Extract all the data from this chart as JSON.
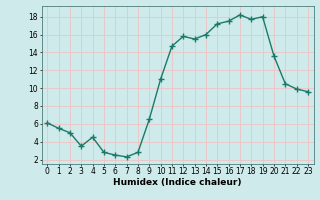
{
  "x": [
    0,
    1,
    2,
    3,
    4,
    5,
    6,
    7,
    8,
    9,
    10,
    11,
    12,
    13,
    14,
    15,
    16,
    17,
    18,
    19,
    20,
    21,
    22,
    23
  ],
  "y": [
    6.1,
    5.5,
    5.0,
    3.5,
    4.5,
    2.8,
    2.5,
    2.3,
    2.8,
    6.5,
    11.0,
    14.7,
    15.8,
    15.5,
    16.0,
    17.2,
    17.5,
    18.2,
    17.7,
    18.0,
    13.6,
    10.5,
    9.9,
    9.6
  ],
  "line_color": "#1a7a6a",
  "marker": "+",
  "marker_size": 4,
  "line_width": 1.0,
  "xlabel": "Humidex (Indice chaleur)",
  "xlim": [
    -0.5,
    23.5
  ],
  "ylim": [
    1.5,
    19.2
  ],
  "yticks": [
    2,
    4,
    6,
    8,
    10,
    12,
    14,
    16,
    18
  ],
  "xticks": [
    0,
    1,
    2,
    3,
    4,
    5,
    6,
    7,
    8,
    9,
    10,
    11,
    12,
    13,
    14,
    15,
    16,
    17,
    18,
    19,
    20,
    21,
    22,
    23
  ],
  "background_color": "#ceeaea",
  "grid_color": "#e8c8c8",
  "tick_fontsize": 5.5,
  "xlabel_fontsize": 6.5
}
